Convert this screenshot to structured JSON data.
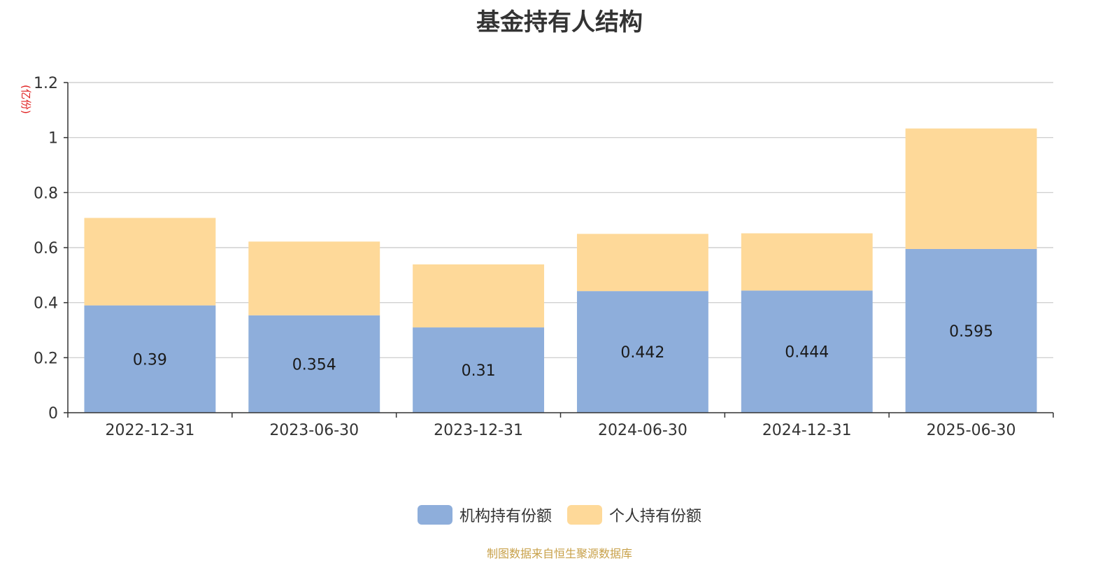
{
  "chart_data": {
    "type": "bar",
    "stacked": true,
    "title": "基金持有人结构",
    "ylabel": "(亿份)",
    "ylim": [
      0,
      1.2
    ],
    "yticks": [
      "0",
      "0.2",
      "0.4",
      "0.6",
      "0.8",
      "1",
      "1.2"
    ],
    "categories": [
      "2022-12-31",
      "2023-06-30",
      "2023-12-31",
      "2024-06-30",
      "2024-12-31",
      "2025-06-30"
    ],
    "series": [
      {
        "name": "机构持有份额",
        "color": "#8eaedb",
        "values": [
          0.39,
          0.354,
          0.31,
          0.442,
          0.444,
          0.595
        ],
        "labels": [
          "0.39",
          "0.354",
          "0.31",
          "0.442",
          "0.444",
          "0.595"
        ]
      },
      {
        "name": "个人持有份额",
        "color": "#fed999",
        "values": [
          0.318,
          0.268,
          0.229,
          0.208,
          0.208,
          0.438
        ]
      }
    ],
    "grid": true,
    "legend": "bottom-center"
  },
  "source": "制图数据来自恒生聚源数据库"
}
